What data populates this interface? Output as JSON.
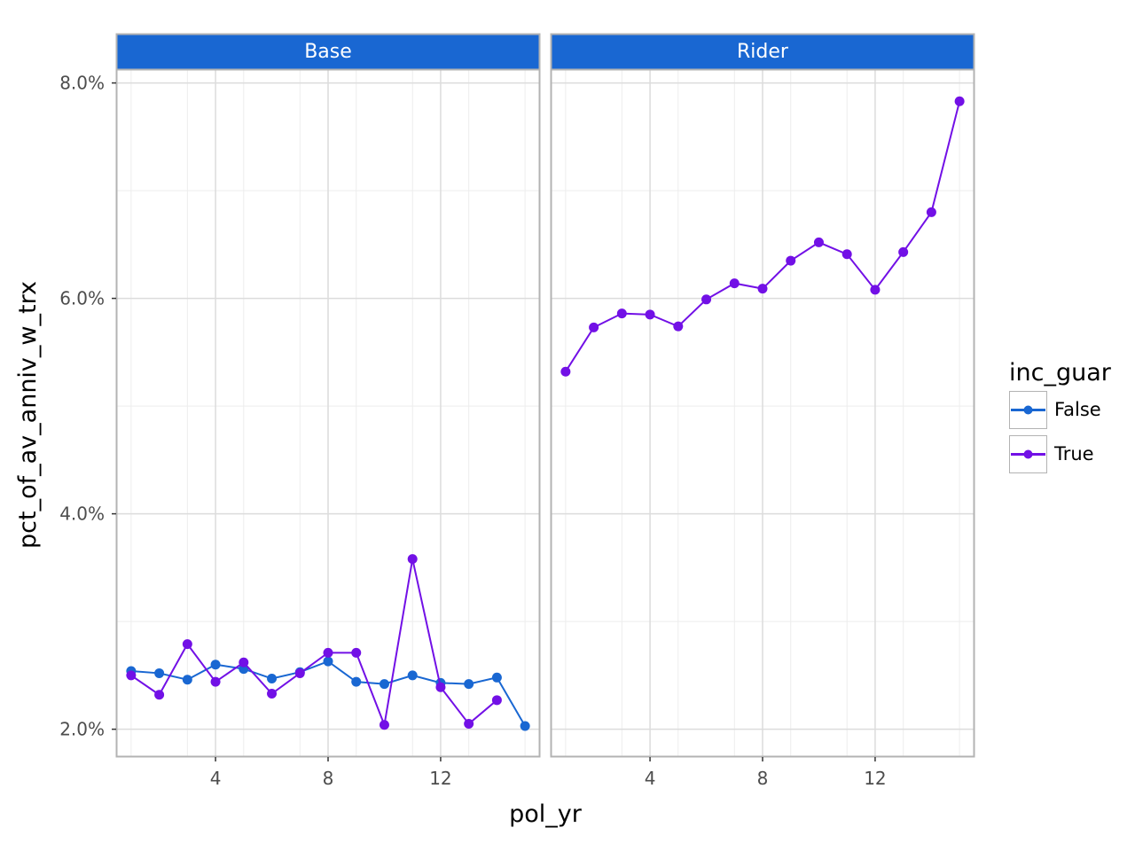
{
  "chart_data": {
    "type": "line",
    "xlabel": "pol_yr",
    "ylabel": "pct_of_av_anniv_w_trx",
    "x_ticks": [
      4,
      8,
      12
    ],
    "y_ticks": [
      2.0,
      4.0,
      6.0,
      8.0
    ],
    "y_tick_labels": [
      "2.0%",
      "4.0%",
      "6.0%",
      "8.0%"
    ],
    "xlim": [
      0.5,
      15.5
    ],
    "ylim": [
      1.75,
      8.12
    ],
    "grid": true,
    "legend": {
      "title": "inc_guar",
      "position": "right",
      "entries": [
        {
          "label": "False",
          "color": "#1967d2"
        },
        {
          "label": "True",
          "color": "#7210e6"
        }
      ]
    },
    "facets": [
      {
        "strip": "Base",
        "series": [
          {
            "name": "False",
            "color": "#1967d2",
            "x": [
              1,
              2,
              3,
              4,
              5,
              6,
              7,
              8,
              9,
              10,
              11,
              12,
              13,
              14,
              15
            ],
            "y": [
              2.54,
              2.52,
              2.46,
              2.6,
              2.56,
              2.47,
              2.53,
              2.63,
              2.44,
              2.42,
              2.5,
              2.43,
              2.42,
              2.48,
              2.03
            ]
          },
          {
            "name": "True",
            "color": "#7210e6",
            "x": [
              1,
              2,
              3,
              4,
              5,
              6,
              7,
              8,
              9,
              10,
              11,
              12,
              13,
              14
            ],
            "y": [
              2.5,
              2.32,
              2.79,
              2.44,
              2.62,
              2.33,
              2.52,
              2.71,
              2.71,
              2.04,
              3.58,
              2.39,
              2.05,
              2.27
            ]
          }
        ]
      },
      {
        "strip": "Rider",
        "series": [
          {
            "name": "True",
            "color": "#7210e6",
            "x": [
              1,
              2,
              3,
              4,
              5,
              6,
              7,
              8,
              9,
              10,
              11,
              12,
              13,
              14,
              15
            ],
            "y": [
              5.32,
              5.73,
              5.86,
              5.85,
              5.74,
              5.99,
              6.14,
              6.09,
              6.35,
              6.52,
              6.41,
              6.08,
              6.43,
              6.8,
              7.83
            ]
          }
        ]
      }
    ]
  }
}
